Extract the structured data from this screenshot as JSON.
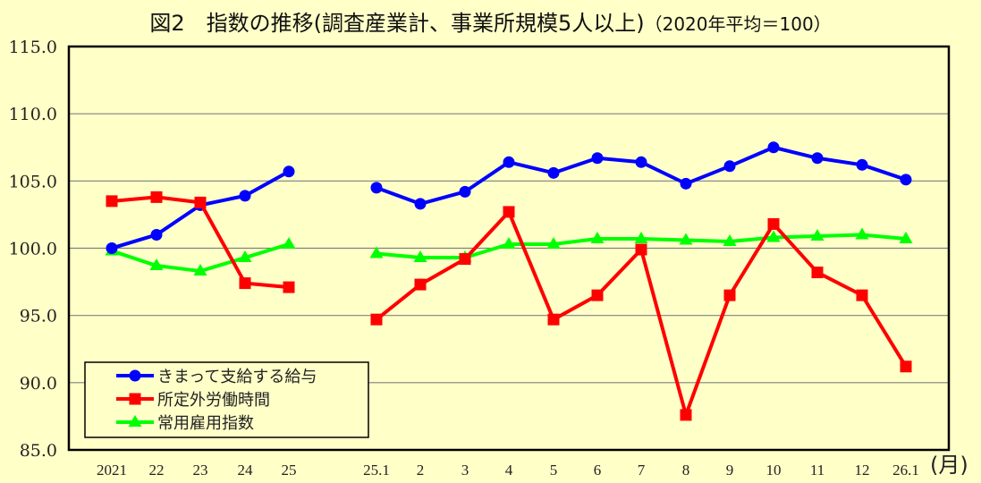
{
  "title": {
    "main": "図2　指数の推移(調査産業計、事業所規模5人以上)",
    "sub": "（2020年平均＝100）"
  },
  "chart_data": {
    "type": "line",
    "title": "図2　指数の推移(調査産業計、事業所規模5人以上)（2020年平均＝100）",
    "xlabel": "(月)",
    "ylabel": "",
    "ylim": [
      85.0,
      115.0
    ],
    "y_ticks": [
      "115.0",
      "110.0",
      "105.0",
      "100.0",
      "95.0",
      "90.0",
      "85.0"
    ],
    "grid": true,
    "legend_position": "lower-left inside",
    "categories": [
      "2021",
      "22",
      "23",
      "24",
      "25",
      "25.1",
      "2",
      "3",
      "4",
      "5",
      "6",
      "7",
      "8",
      "9",
      "10",
      "11",
      "12",
      "26.1"
    ],
    "segments": {
      "annual": [
        "2021",
        "22",
        "23",
        "24",
        "25"
      ],
      "monthly": [
        "25.1",
        "2",
        "3",
        "4",
        "5",
        "6",
        "7",
        "8",
        "9",
        "10",
        "11",
        "12",
        "26.1"
      ]
    },
    "series": [
      {
        "name": "きまって支給する給与",
        "color": "#0000ff",
        "marker": "circle",
        "values": [
          100.0,
          101.0,
          103.2,
          103.9,
          105.7,
          104.5,
          103.3,
          104.2,
          106.4,
          105.6,
          106.7,
          106.4,
          104.8,
          106.1,
          107.5,
          106.7,
          106.2,
          105.1
        ]
      },
      {
        "name": "所定外労働時間",
        "color": "#ff0000",
        "marker": "square",
        "values": [
          103.5,
          103.8,
          103.4,
          97.4,
          97.1,
          94.7,
          97.3,
          99.2,
          102.7,
          94.7,
          96.5,
          99.9,
          87.6,
          96.5,
          101.8,
          98.2,
          96.5,
          91.2
        ]
      },
      {
        "name": "常用雇用指数",
        "color": "#00ff00",
        "marker": "triangle",
        "values": [
          99.8,
          98.7,
          98.3,
          99.3,
          100.3,
          99.6,
          99.3,
          99.3,
          100.3,
          100.3,
          100.7,
          100.7,
          100.6,
          100.5,
          100.8,
          100.9,
          101.0,
          100.7
        ]
      }
    ]
  },
  "colors": {
    "background": "#ffffc8",
    "grid": "#808080",
    "axis": "#000000"
  }
}
